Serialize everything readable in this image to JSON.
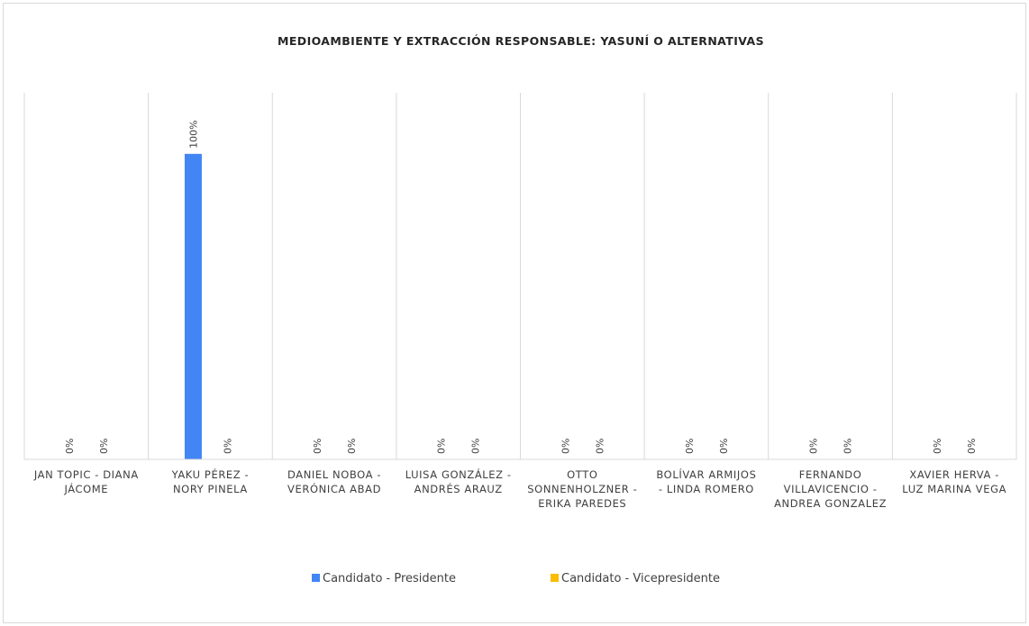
{
  "chart_data": {
    "type": "bar",
    "title": "MEDIOAMBIENTE Y EXTRACCIÓN RESPONSABLE: YASUNÍ O ALTERNATIVAS",
    "categories": [
      [
        "JAN TOPIC - DIANA",
        "JÁCOME"
      ],
      [
        "YAKU PÉREZ -",
        "NORY PINELA"
      ],
      [
        "DANIEL NOBOA -",
        "VERÓNICA ABAD"
      ],
      [
        "LUISA GONZÁLEZ -",
        "ANDRÉS ARAUZ"
      ],
      [
        "OTTO",
        "SONNENHOLZNER -",
        "ERIKA PAREDES"
      ],
      [
        "BOLÍVAR ARMIJOS",
        "- LINDA ROMERO"
      ],
      [
        "FERNANDO",
        "VILLAVICENCIO -",
        "ANDREA GONZALEZ"
      ],
      [
        "XAVIER HERVA -",
        "LUZ MARINA VEGA"
      ]
    ],
    "series": [
      {
        "name": "Candidato - Presidente",
        "color": "#4285f4",
        "values": [
          0,
          100,
          0,
          0,
          0,
          0,
          0,
          0
        ]
      },
      {
        "name": "Candidato - Vicepresidente",
        "color": "#fbbc04",
        "values": [
          0,
          0,
          0,
          0,
          0,
          0,
          0,
          0
        ]
      }
    ],
    "data_labels": [
      [
        "0%",
        "100%",
        "0%",
        "0%",
        "0%",
        "0%",
        "0%",
        "0%"
      ],
      [
        "0%",
        "0%",
        "0%",
        "0%",
        "0%",
        "0%",
        "0%",
        "0%"
      ]
    ],
    "ylim": [
      0,
      120
    ],
    "y_axis_visible": false,
    "grid": "vertical category separators",
    "legend": "bottom-center"
  }
}
